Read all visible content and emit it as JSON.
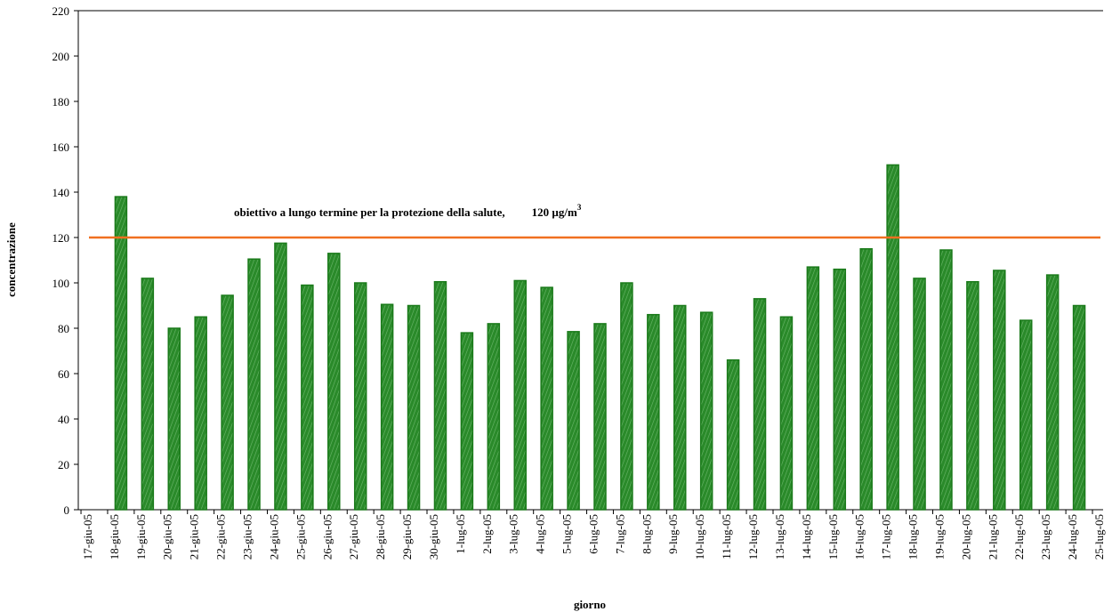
{
  "chart_data": {
    "type": "bar",
    "x_label": "giorno",
    "y_label": "concentrazione",
    "categories": [
      "17-giu-05",
      "18-giu-05",
      "19-giu-05",
      "20-giu-05",
      "21-giu-05",
      "22-giu-05",
      "23-giu-05",
      "24-giu-05",
      "25-giu-05",
      "26-giu-05",
      "27-giu-05",
      "28-giu-05",
      "29-giu-05",
      "30-giu-05",
      "1-lug-05",
      "2-lug-05",
      "3-lug-05",
      "4-lug-05",
      "5-lug-05",
      "6-lug-05",
      "7-lug-05",
      "8-lug-05",
      "9-lug-05",
      "10-lug-05",
      "11-lug-05",
      "12-lug-05",
      "13-lug-05",
      "14-lug-05",
      "15-lug-05",
      "16-lug-05",
      "17-lug-05",
      "18-lug-05",
      "19-lug-05",
      "20-lug-05",
      "21-lug-05",
      "22-lug-05",
      "23-lug-05",
      "24-lug-05",
      "25-lug-05"
    ],
    "values": [
      null,
      138,
      102,
      80,
      85,
      94.5,
      110.5,
      117.5,
      99,
      113,
      100,
      90.5,
      90,
      100.5,
      78,
      82,
      101,
      98,
      78.5,
      82,
      100,
      86,
      90,
      87,
      66,
      93,
      85,
      107,
      106,
      115,
      152,
      102,
      114.5,
      100.5,
      105.5,
      83.5,
      103.5,
      90,
      null
    ],
    "color": "#2a8a2a",
    "ylim": [
      0,
      220
    ],
    "yticks": [
      0,
      20,
      40,
      60,
      80,
      100,
      120,
      140,
      160,
      180,
      200,
      220
    ],
    "reference_line": {
      "value": 120,
      "color": "#f07020"
    },
    "annotation": {
      "text": "obiettivo a lungo termine per la protezione della salute,",
      "value_text": "120 µg/m",
      "superscript": "3"
    }
  }
}
